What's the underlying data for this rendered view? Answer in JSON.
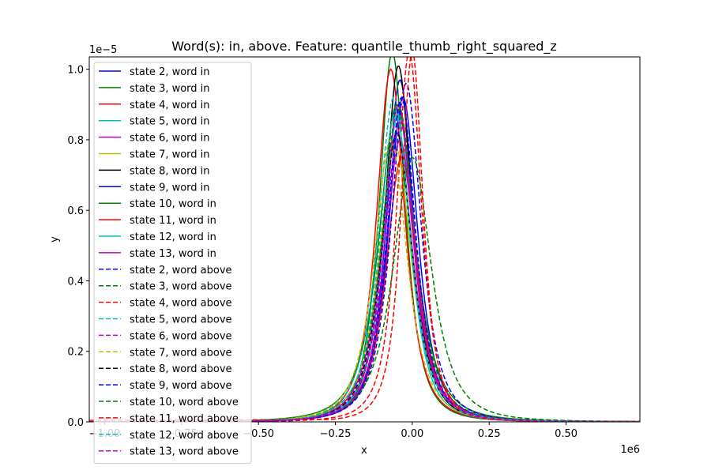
{
  "chart_data": {
    "type": "line",
    "title": "Word(s): in, above. Feature: quantile_thumb_right_squared_z",
    "xlabel": "x",
    "ylabel": "y",
    "x_multiplier_label": "1e6",
    "y_multiplier_label": "1e−5",
    "xlim": [
      -1.05,
      0.74
    ],
    "ylim": [
      0,
      1.035
    ],
    "x_ticks": [
      -1.0,
      -0.75,
      -0.5,
      -0.25,
      0.0,
      0.25,
      0.5
    ],
    "x_tick_labels": [
      "−1.00",
      "−0.75",
      "−0.50",
      "−0.25",
      "0.00",
      "0.25",
      "0.50"
    ],
    "y_ticks": [
      0.0,
      0.2,
      0.4,
      0.6,
      0.8,
      1.0
    ],
    "y_tick_labels": [
      "0.0",
      "0.2",
      "0.4",
      "0.6",
      "0.8",
      "1.0"
    ],
    "legend_position": "upper-left",
    "series": [
      {
        "name": "state 2, word in",
        "color": "#0000ff",
        "style": "solid",
        "mu": -0.04,
        "sigma": 0.05,
        "peak": 0.97,
        "tail": 0.0
      },
      {
        "name": "state 3, word in",
        "color": "#008000",
        "style": "solid",
        "mu": -0.065,
        "sigma": 0.048,
        "peak": 1.05,
        "tail": 0.0
      },
      {
        "name": "state 4, word in",
        "color": "#ff0000",
        "style": "solid",
        "mu": -0.07,
        "sigma": 0.052,
        "peak": 1.0,
        "tail": 0.0
      },
      {
        "name": "state 5, word in",
        "color": "#00bfbf",
        "style": "solid",
        "mu": -0.045,
        "sigma": 0.055,
        "peak": 0.88,
        "tail": 0.0
      },
      {
        "name": "state 6, word in",
        "color": "#bf00bf",
        "style": "solid",
        "mu": -0.05,
        "sigma": 0.058,
        "peak": 0.82,
        "tail": 0.0
      },
      {
        "name": "state 7, word in",
        "color": "#bfbf00",
        "style": "solid",
        "mu": -0.055,
        "sigma": 0.06,
        "peak": 0.78,
        "tail": 0.0
      },
      {
        "name": "state 8, word in",
        "color": "#000000",
        "style": "solid",
        "mu": -0.045,
        "sigma": 0.05,
        "peak": 1.01,
        "tail": 0.0
      },
      {
        "name": "state 9, word in",
        "color": "#0000ff",
        "style": "solid",
        "mu": -0.03,
        "sigma": 0.054,
        "peak": 0.92,
        "tail": 0.0
      },
      {
        "name": "state 10, word in",
        "color": "#008000",
        "style": "solid",
        "mu": -0.05,
        "sigma": 0.065,
        "peak": 0.9,
        "tail": 0.0
      },
      {
        "name": "state 11, word in",
        "color": "#ff0000",
        "style": "solid",
        "mu": -0.035,
        "sigma": 0.056,
        "peak": 0.75,
        "tail": 0.0
      },
      {
        "name": "state 12, word in",
        "color": "#00bfbf",
        "style": "solid",
        "mu": -0.05,
        "sigma": 0.052,
        "peak": 0.86,
        "tail": 0.0
      },
      {
        "name": "state 13, word in",
        "color": "#bf00bf",
        "style": "solid",
        "mu": -0.04,
        "sigma": 0.055,
        "peak": 0.8,
        "tail": 0.0
      },
      {
        "name": "state 2, word above",
        "color": "#0000ff",
        "style": "dashed",
        "mu": -0.02,
        "sigma": 0.055,
        "peak": 0.96,
        "tail": 0.0
      },
      {
        "name": "state 3, word above",
        "color": "#008000",
        "style": "dashed",
        "mu": -0.045,
        "sigma": 0.06,
        "peak": 0.9,
        "tail": 0.0
      },
      {
        "name": "state 4, word above",
        "color": "#ff0000",
        "style": "dashed",
        "mu": -0.01,
        "sigma": 0.045,
        "peak": 1.05,
        "tail": 0.0
      },
      {
        "name": "state 5, word above",
        "color": "#00bfbf",
        "style": "dashed",
        "mu": -0.06,
        "sigma": 0.058,
        "peak": 0.92,
        "tail": 0.0
      },
      {
        "name": "state 6, word above",
        "color": "#bf00bf",
        "style": "dashed",
        "mu": -0.04,
        "sigma": 0.057,
        "peak": 0.85,
        "tail": 0.0
      },
      {
        "name": "state 7, word above",
        "color": "#bfbf00",
        "style": "dashed",
        "mu": -0.07,
        "sigma": 0.06,
        "peak": 0.8,
        "tail": 0.0
      },
      {
        "name": "state 8, word above",
        "color": "#000000",
        "style": "dashed",
        "mu": -0.05,
        "sigma": 0.056,
        "peak": 0.82,
        "tail": 0.0
      },
      {
        "name": "state 9, word above",
        "color": "#0000ff",
        "style": "dashed",
        "mu": -0.035,
        "sigma": 0.052,
        "peak": 0.92,
        "tail": 0.0
      },
      {
        "name": "state 10, word above",
        "color": "#008000",
        "style": "dashed",
        "mu": 0.0,
        "sigma": 0.07,
        "peak": 0.75,
        "tail": 0.0
      },
      {
        "name": "state 11, word above",
        "color": "#ff0000",
        "style": "dashed",
        "mu": 0.0,
        "sigma": 0.04,
        "peak": 1.05,
        "tail": 0.008
      },
      {
        "name": "state 12, word above",
        "color": "#00bfbf",
        "style": "dashed",
        "mu": -0.055,
        "sigma": 0.057,
        "peak": 0.88,
        "tail": 0.0
      },
      {
        "name": "state 13, word above",
        "color": "#bf00bf",
        "style": "dashed",
        "mu": -0.045,
        "sigma": 0.054,
        "peak": 0.9,
        "tail": 0.0
      }
    ]
  }
}
